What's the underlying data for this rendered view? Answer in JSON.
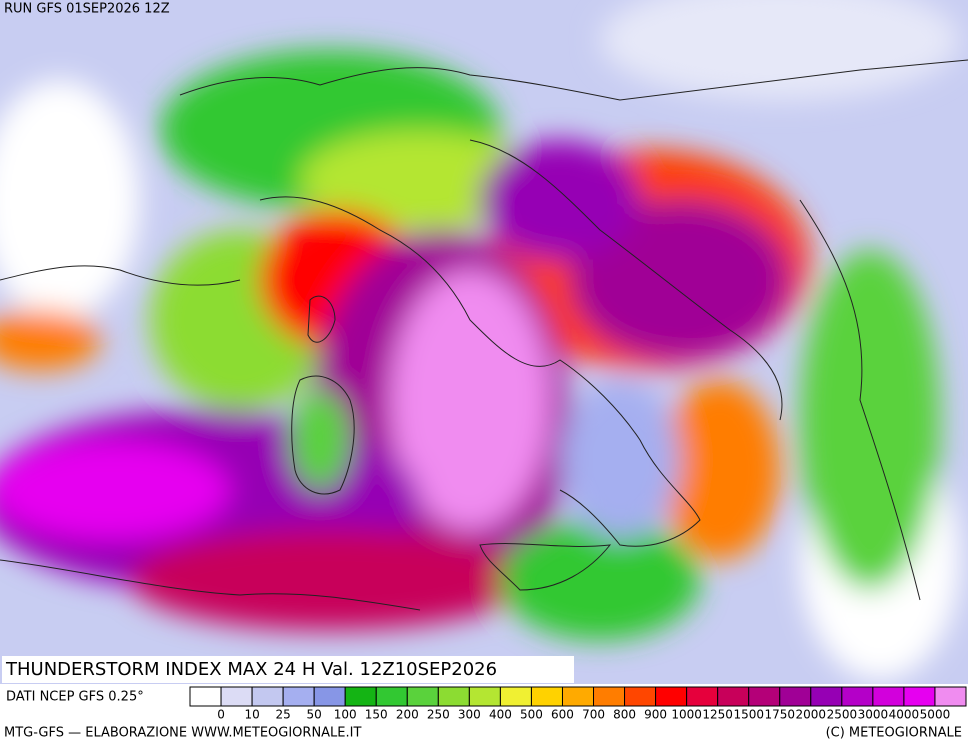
{
  "header": {
    "run": "RUN GFS 01SEP2026 12Z"
  },
  "map": {
    "title": "THUNDERSTORM INDEX MAX 24 H Val. 12Z10SEP2026"
  },
  "footer": {
    "source": "DATI NCEP GFS 0.25°",
    "credit_left": "MTG-GFS — ELABORAZIONE WWW.METEOGIORNALE.IT",
    "credit_right": "(C) METEOGIORNALE"
  },
  "legend": {
    "labels": [
      0,
      10,
      25,
      50,
      100,
      150,
      200,
      250,
      300,
      400,
      500,
      600,
      700,
      800,
      900,
      1000,
      1250,
      1500,
      1750,
      2000,
      2500,
      3000,
      4000,
      5000
    ],
    "colors": [
      "#ffffff",
      "#dcdcf5",
      "#c3c8f0",
      "#a5aff0",
      "#8796e6",
      "#14b414",
      "#32c832",
      "#5ad23c",
      "#8cdc32",
      "#b4e632",
      "#f0f032",
      "#ffd200",
      "#ffaa00",
      "#ff7d00",
      "#ff4600",
      "#ff0000",
      "#e6003c",
      "#c8005a",
      "#b40078",
      "#a00096",
      "#9600b4",
      "#b400c8",
      "#d200dc",
      "#e600f0",
      "#f08cf0"
    ]
  }
}
